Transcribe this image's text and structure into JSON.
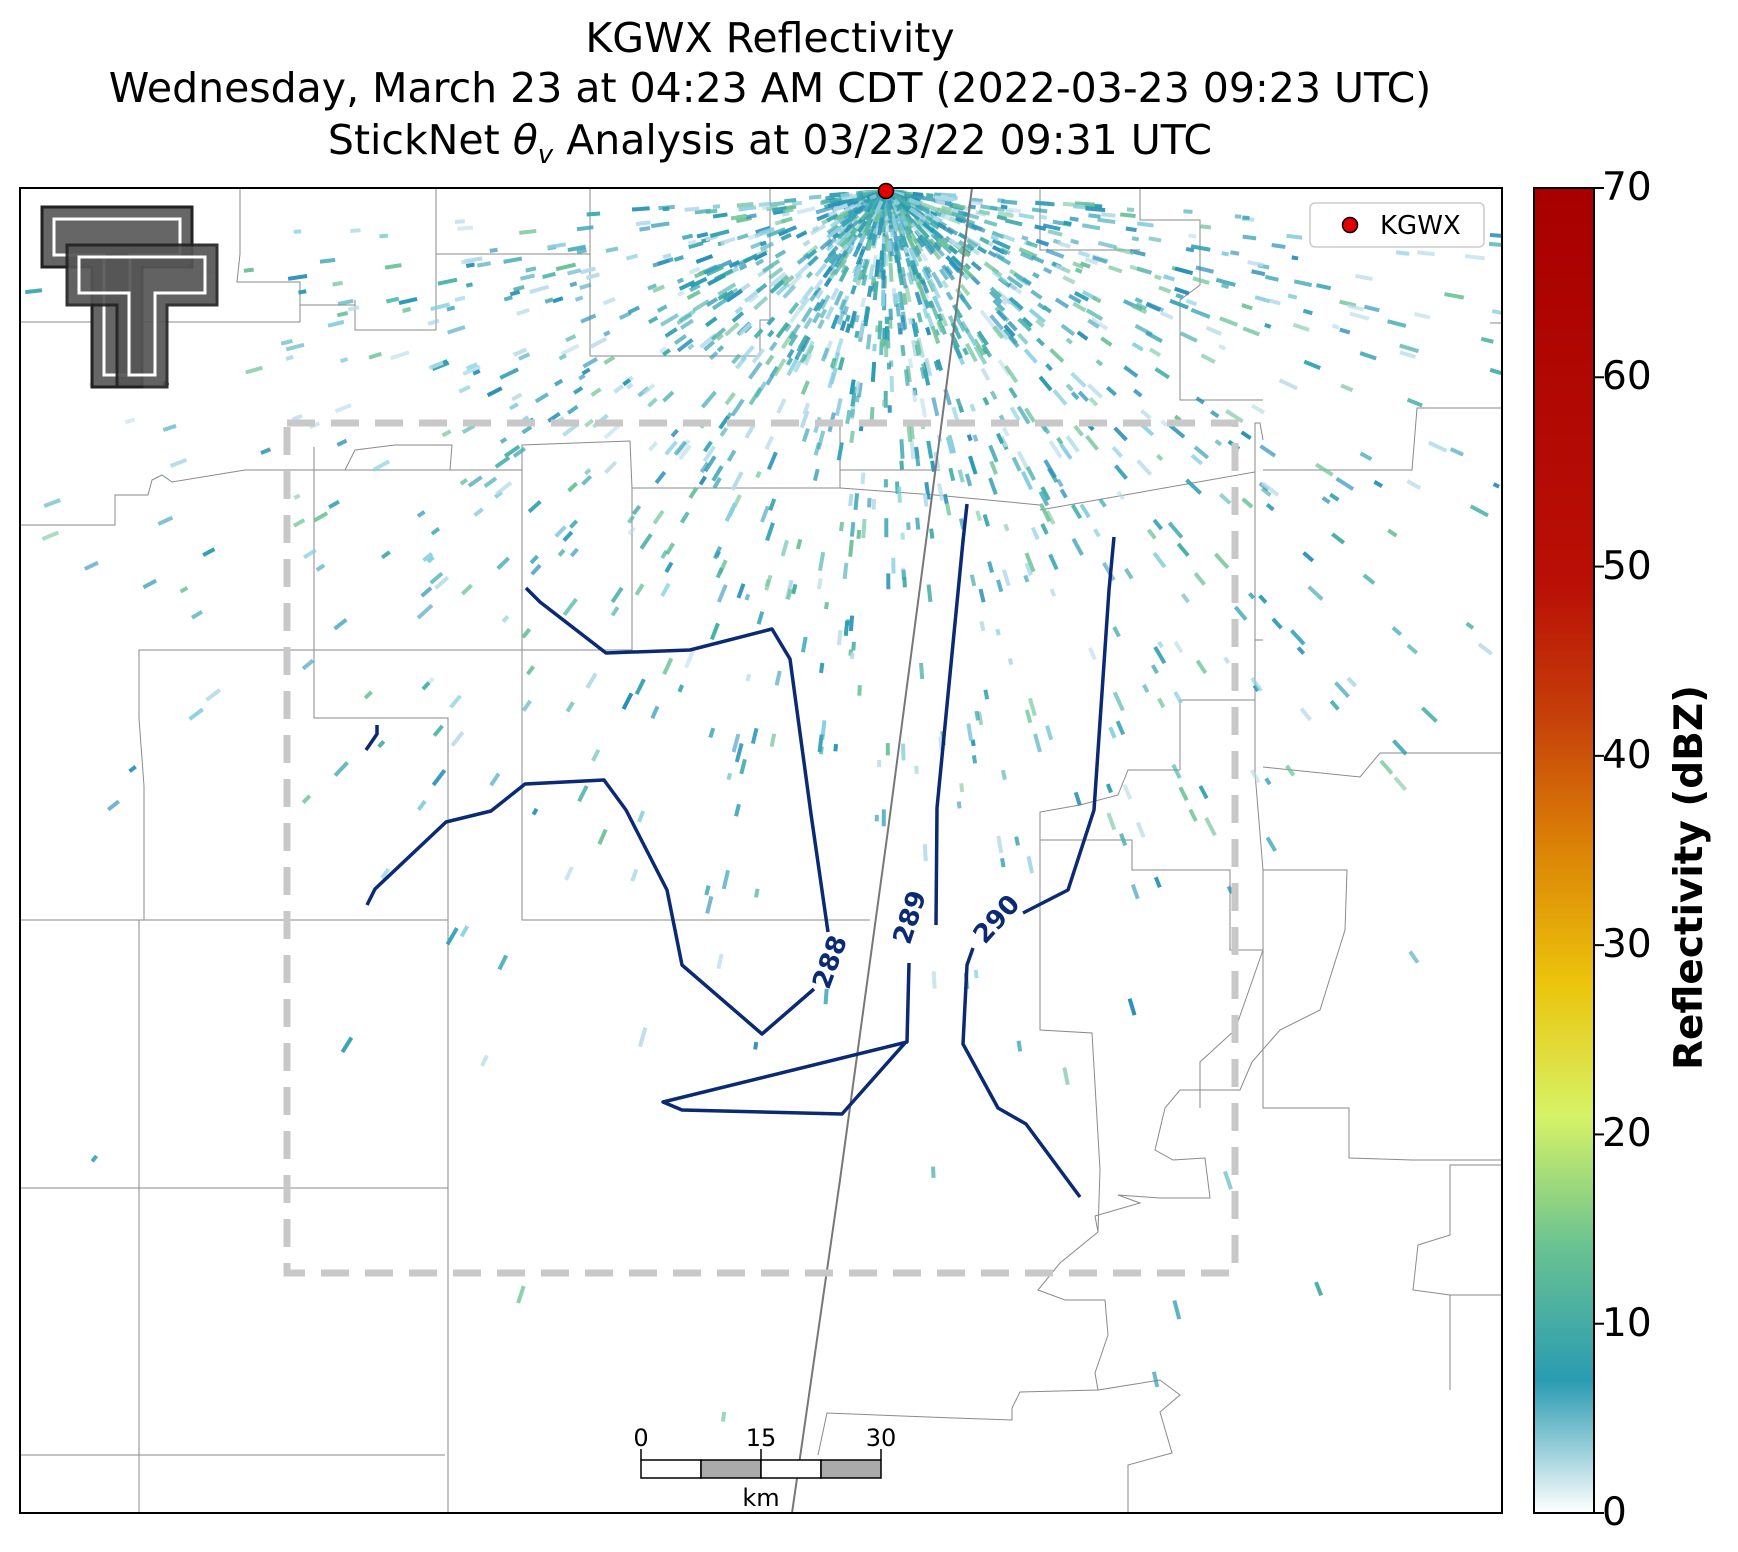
{
  "title": {
    "line1": "KGWX Reflectivity",
    "line2": "Wednesday, March 23 at 04:23 AM CDT (2022-03-23 09:23 UTC)",
    "line3_prefix": "StickNet ",
    "line3_symbol": "θ",
    "line3_subscript": "v",
    "line3_suffix": " Analysis at 03/23/22 09:31 UTC"
  },
  "legend": {
    "label": "KGWX",
    "marker_color": "#e00000"
  },
  "contours": [
    {
      "label": "288"
    },
    {
      "label": "289"
    },
    {
      "label": "290"
    }
  ],
  "contour_color": "#0b2a72",
  "scale_bar": {
    "ticks": [
      "0",
      "15",
      "30"
    ],
    "unit": "km"
  },
  "colorbar": {
    "title": "Reflectivity (dBZ)",
    "ticks": [
      "70",
      "60",
      "50",
      "40",
      "30",
      "20",
      "10",
      "0"
    ],
    "min": 0,
    "max": 70
  },
  "logo": {
    "name": "texas-tech-double-t-logo"
  }
}
